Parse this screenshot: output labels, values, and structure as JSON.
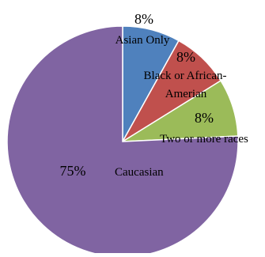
{
  "chart_data": {
    "type": "pie",
    "title": "",
    "series": [
      {
        "values": [
          8,
          8,
          8,
          75
        ]
      }
    ],
    "categories": [
      "Asian Only",
      "Black or African-Amerian",
      "Two or more races",
      "Caucasian"
    ],
    "percent_labels": [
      "8%",
      "8%",
      "8%",
      "75%"
    ],
    "colors": [
      "#4F81BD",
      "#C0504D",
      "#9BBB59",
      "#8064A2"
    ],
    "legend": "none",
    "data_labels": "inside"
  }
}
